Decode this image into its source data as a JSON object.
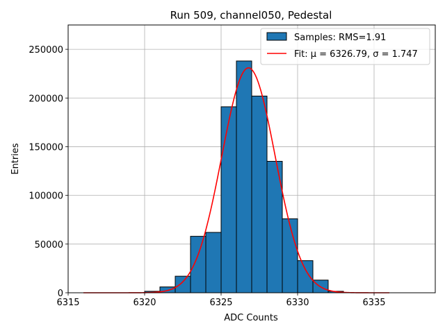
{
  "chart_data": {
    "type": "bar",
    "title": "Run 509, channel050, Pedestal",
    "xlabel": "ADC Counts",
    "ylabel": "Entries",
    "xlim": [
      6315,
      6339
    ],
    "ylim": [
      0,
      275000
    ],
    "xticks": [
      6315,
      6320,
      6325,
      6330,
      6335
    ],
    "yticks": [
      0,
      50000,
      100000,
      150000,
      200000,
      250000
    ],
    "grid": true,
    "legend_position": "top-right",
    "bar_color": "#1f77b4",
    "fit_color": "#ff0000",
    "bins": [
      {
        "left": 6320,
        "right": 6321,
        "value": 1500
      },
      {
        "left": 6321,
        "right": 6322,
        "value": 6000
      },
      {
        "left": 6322,
        "right": 6323,
        "value": 17000
      },
      {
        "left": 6323,
        "right": 6324,
        "value": 58000
      },
      {
        "left": 6324,
        "right": 6325,
        "value": 62000
      },
      {
        "left": 6325,
        "right": 6326,
        "value": 191000
      },
      {
        "left": 6326,
        "right": 6327,
        "value": 238000
      },
      {
        "left": 6327,
        "right": 6328,
        "value": 202000
      },
      {
        "left": 6328,
        "right": 6329,
        "value": 135000
      },
      {
        "left": 6329,
        "right": 6330,
        "value": 76000
      },
      {
        "left": 6330,
        "right": 6331,
        "value": 33000
      },
      {
        "left": 6331,
        "right": 6332,
        "value": 13000
      },
      {
        "left": 6332,
        "right": 6333,
        "value": 1500
      }
    ],
    "fit": {
      "mu": 6326.79,
      "sigma": 1.747,
      "amplitude": 231000,
      "x_range": [
        6316,
        6336
      ]
    },
    "legend": {
      "samples_label": "Samples: RMS=1.91",
      "fit_label": "Fit: μ = 6326.79, σ = 1.747"
    }
  }
}
